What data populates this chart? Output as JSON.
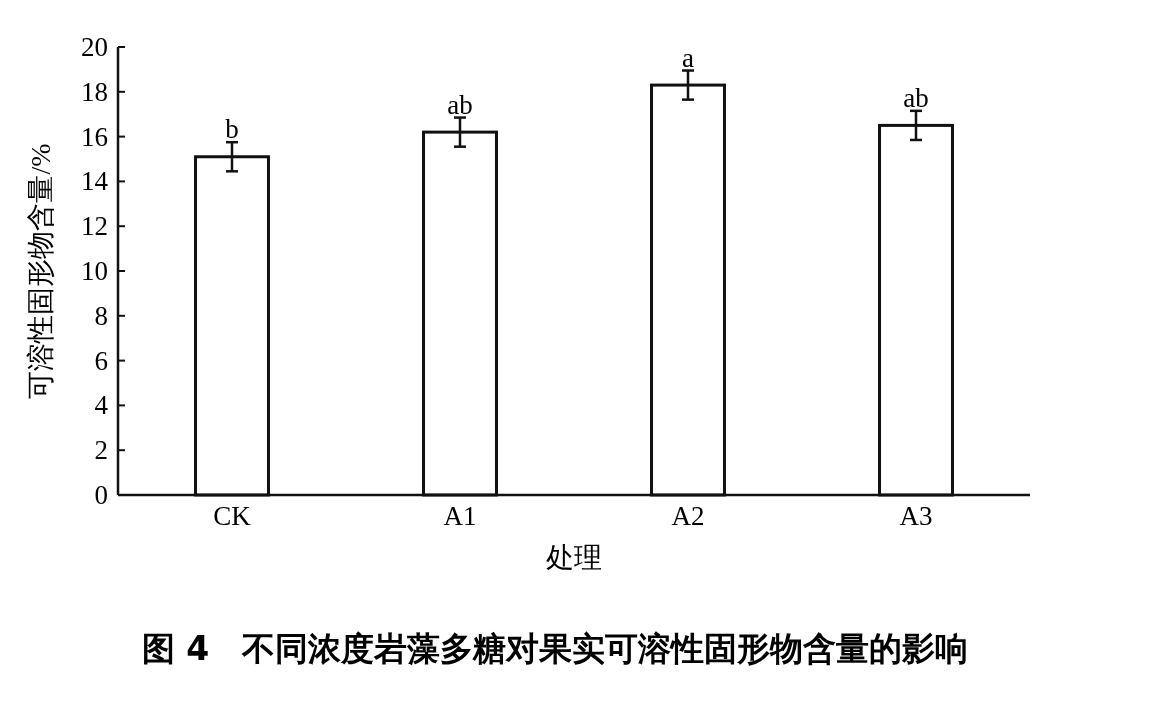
{
  "chart_data": {
    "type": "bar",
    "title": "图 4　不同浓度岩藻多糖对果实可溶性固形物含量的影响",
    "xlabel": "处理",
    "ylabel": "可溶性固形物含量/%",
    "categories": [
      "CK",
      "A1",
      "A2",
      "A3"
    ],
    "values": [
      15.1,
      16.2,
      18.3,
      16.5
    ],
    "errors": [
      0.65,
      0.65,
      0.65,
      0.65
    ],
    "color": "#ffffff",
    "ylim": [
      0,
      20
    ],
    "yticks": [
      0,
      2,
      4,
      6,
      8,
      10,
      12,
      14,
      16,
      18,
      20
    ],
    "grid": false,
    "annotations": [
      {
        "text": "b",
        "x": "CK",
        "y": 15.75
      },
      {
        "text": "ab",
        "x": "A1",
        "y": 16.85
      },
      {
        "text": "a",
        "x": "A2",
        "y": 18.95
      },
      {
        "text": "ab",
        "x": "A3",
        "y": 17.15
      }
    ]
  }
}
